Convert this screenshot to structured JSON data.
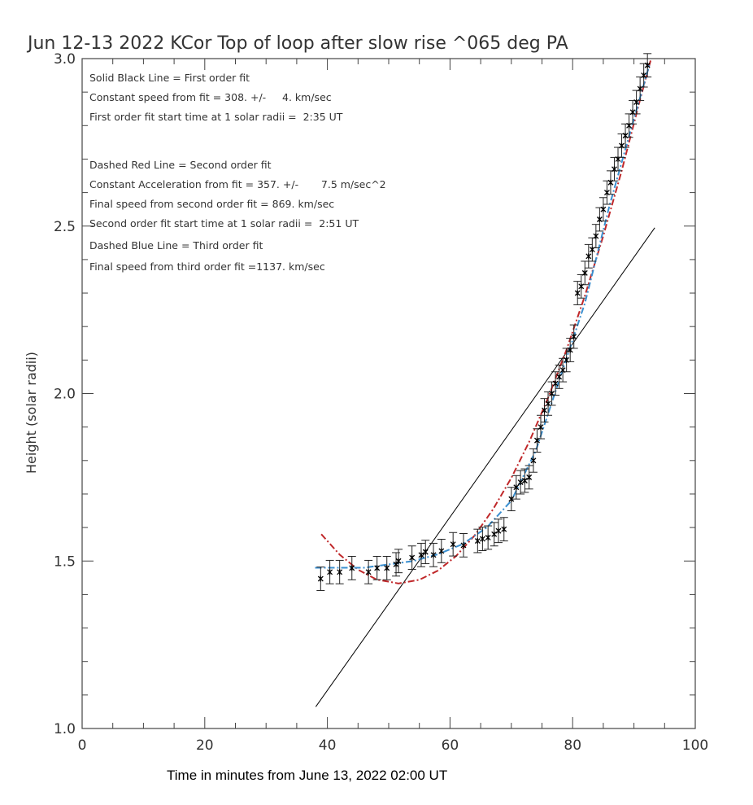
{
  "chart_data": {
    "type": "scatter",
    "title": "Jun 12-13 2022 KCor Top of loop after slow rise ^065 deg PA",
    "xlabel": "Time in minutes from June 13, 2022 02:00 UT",
    "ylabel": "Height (solar radii)",
    "xlim": [
      0,
      100
    ],
    "ylim": [
      1.0,
      3.0
    ],
    "x_ticks": [
      "0",
      "20",
      "40",
      "60",
      "80",
      "100"
    ],
    "y_ticks": [
      "1.0",
      "1.5",
      "2.0",
      "2.5",
      "3.0"
    ],
    "grid": false,
    "annotations": [
      "Solid Black Line = First order fit",
      "Constant speed from fit = 308. +/-     4. km/sec",
      "First order fit start time at 1 solar radii =  2:35 UT",
      "Dashed Red Line = Second order fit",
      "Constant Acceleration from fit = 357. +/-       7.5 m/sec^2",
      "Final speed from second order fit = 869. km/sec",
      "Second order fit start time at 1 solar radii =  2:51 UT",
      "Dashed Blue Line = Third order fit",
      "Final speed from third order fit =1137. km/sec"
    ],
    "error": 0.035,
    "points": {
      "x": [
        38.9,
        40.4,
        42.0,
        44.0,
        46.7,
        48.1,
        49.7,
        51.2,
        51.6,
        53.8,
        55.3,
        56.0,
        57.3,
        58.6,
        60.5,
        62.2,
        64.5,
        65.3,
        66.2,
        67.2,
        67.9,
        68.8,
        70.0,
        70.8,
        71.5,
        72.2,
        72.9,
        73.6,
        74.2,
        74.8,
        75.4,
        76.0,
        76.6,
        77.2,
        77.8,
        78.4,
        79.0,
        79.6,
        80.2,
        80.8,
        81.4,
        82.0,
        82.6,
        83.2,
        83.8,
        84.4,
        85.0,
        85.6,
        86.2,
        86.8,
        87.4,
        88.0,
        88.6,
        89.2,
        89.8,
        90.4,
        91.0,
        91.6,
        92.2
      ],
      "y": [
        1.447,
        1.467,
        1.467,
        1.479,
        1.467,
        1.479,
        1.479,
        1.49,
        1.5,
        1.51,
        1.518,
        1.527,
        1.518,
        1.53,
        1.55,
        1.547,
        1.56,
        1.566,
        1.57,
        1.58,
        1.59,
        1.595,
        1.685,
        1.72,
        1.735,
        1.74,
        1.75,
        1.8,
        1.86,
        1.9,
        1.95,
        1.97,
        2.0,
        2.03,
        2.05,
        2.07,
        2.1,
        2.13,
        2.17,
        2.3,
        2.32,
        2.36,
        2.41,
        2.43,
        2.47,
        2.52,
        2.55,
        2.6,
        2.63,
        2.67,
        2.7,
        2.74,
        2.77,
        2.8,
        2.84,
        2.87,
        2.91,
        2.95,
        2.98
      ]
    },
    "fits": [
      {
        "name": "First order fit",
        "color": "#000000",
        "style": "solid",
        "x": [
          38.1,
          93.4
        ],
        "y": [
          1.065,
          2.495
        ]
      },
      {
        "name": "Second order fit",
        "color": "#c0282a",
        "style": "dash-dot",
        "x": [
          39,
          42,
          45,
          48,
          51.6,
          55,
          58,
          61,
          64,
          67,
          70,
          73,
          76,
          79,
          82,
          85,
          88,
          91,
          92.8
        ],
        "y": [
          1.58,
          1.519,
          1.474,
          1.445,
          1.433,
          1.444,
          1.471,
          1.515,
          1.576,
          1.654,
          1.748,
          1.859,
          1.987,
          2.131,
          2.292,
          2.471,
          2.665,
          2.877,
          3.0
        ]
      },
      {
        "name": "Third order fit",
        "color": "#3a8fd0",
        "style": "dash-dot",
        "x": [
          38,
          42,
          46,
          50,
          54,
          58,
          62,
          66,
          70,
          74,
          78,
          82,
          86,
          90,
          92.5
        ],
        "y": [
          1.48,
          1.48,
          1.48,
          1.49,
          1.5,
          1.52,
          1.55,
          1.6,
          1.68,
          1.83,
          2.05,
          2.27,
          2.56,
          2.82,
          2.98
        ]
      }
    ]
  }
}
